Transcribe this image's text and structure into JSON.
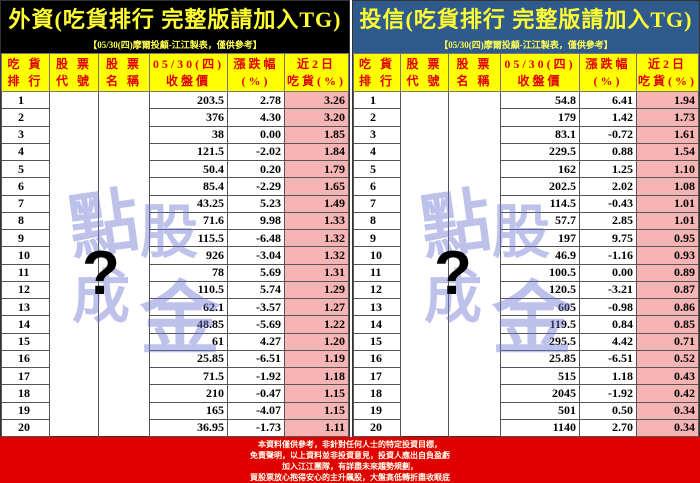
{
  "left": {
    "title": "外資(吃貨排行  完整版請加入TG)",
    "subtitle": "【05/30(四)摩爾投顧-江江製表，僅供參考】",
    "rows": [
      [
        "1",
        "203.5",
        "2.78",
        "3.26"
      ],
      [
        "2",
        "376",
        "4.30",
        "3.20"
      ],
      [
        "3",
        "38",
        "0.00",
        "1.85"
      ],
      [
        "4",
        "121.5",
        "-2.02",
        "1.84"
      ],
      [
        "5",
        "50.4",
        "0.20",
        "1.79"
      ],
      [
        "6",
        "85.4",
        "-2.29",
        "1.65"
      ],
      [
        "7",
        "43.25",
        "5.23",
        "1.49"
      ],
      [
        "8",
        "71.6",
        "9.98",
        "1.33"
      ],
      [
        "9",
        "115.5",
        "-6.48",
        "1.32"
      ],
      [
        "10",
        "926",
        "-3.04",
        "1.32"
      ],
      [
        "11",
        "78",
        "5.69",
        "1.31"
      ],
      [
        "12",
        "110.5",
        "5.74",
        "1.29"
      ],
      [
        "13",
        "62.1",
        "-3.57",
        "1.27"
      ],
      [
        "14",
        "48.85",
        "-5.69",
        "1.22"
      ],
      [
        "15",
        "61",
        "4.27",
        "1.20"
      ],
      [
        "16",
        "25.85",
        "-6.51",
        "1.19"
      ],
      [
        "17",
        "71.5",
        "-1.92",
        "1.18"
      ],
      [
        "18",
        "210",
        "-0.47",
        "1.15"
      ],
      [
        "19",
        "165",
        "-4.07",
        "1.15"
      ],
      [
        "20",
        "36.95",
        "-1.73",
        "1.11"
      ]
    ]
  },
  "right": {
    "title": "投信(吃貨排行  完整版請加入TG)",
    "subtitle": "【05/30(四)摩爾投顧-江江製表，僅供參考】",
    "rows": [
      [
        "1",
        "54.8",
        "6.41",
        "1.94"
      ],
      [
        "2",
        "179",
        "1.42",
        "1.73"
      ],
      [
        "3",
        "83.1",
        "-0.72",
        "1.61"
      ],
      [
        "4",
        "229.5",
        "0.88",
        "1.54"
      ],
      [
        "5",
        "162",
        "1.25",
        "1.10"
      ],
      [
        "6",
        "202.5",
        "2.02",
        "1.08"
      ],
      [
        "7",
        "114.5",
        "-0.43",
        "1.01"
      ],
      [
        "8",
        "57.7",
        "2.85",
        "1.01"
      ],
      [
        "9",
        "197",
        "9.75",
        "0.95"
      ],
      [
        "10",
        "46.9",
        "-1.16",
        "0.93"
      ],
      [
        "11",
        "100.5",
        "0.00",
        "0.89"
      ],
      [
        "12",
        "120.5",
        "-3.21",
        "0.87"
      ],
      [
        "13",
        "605",
        "-0.98",
        "0.86"
      ],
      [
        "14",
        "119.5",
        "0.84",
        "0.85"
      ],
      [
        "15",
        "295.5",
        "4.42",
        "0.71"
      ],
      [
        "16",
        "25.85",
        "-6.51",
        "0.52"
      ],
      [
        "17",
        "515",
        "1.18",
        "0.43"
      ],
      [
        "18",
        "2045",
        "-1.92",
        "0.42"
      ],
      [
        "19",
        "501",
        "0.50",
        "0.34"
      ],
      [
        "20",
        "1140",
        "2.70",
        "0.34"
      ]
    ]
  },
  "headers": [
    [
      "吃 貨",
      "排 行"
    ],
    [
      "股 票",
      "代 號"
    ],
    [
      "股 票",
      "名 稱"
    ],
    [
      "05/30(四)",
      "收盤價"
    ],
    [
      "漲跌幅",
      "(%)"
    ],
    [
      "近2日",
      "吃貨(%)"
    ]
  ],
  "watermark": {
    "chars": [
      "點",
      "股",
      "成",
      "金"
    ],
    "mark": "?"
  },
  "footer": [
    "本資料僅供參考，非針對任何人士的特定投資目標，",
    "免責聲明，以上資料並非投資意見，投資人應出自負盈虧",
    "加入江江團隊，有詳盡未來趨勢規劃，",
    "買股票放心抱得安心的主升飆股，大盤高低轉折盡收眼底"
  ],
  "colors": {
    "header_bg": "#ffff00",
    "header_text": "#e00000",
    "buy_bg": "#f7b4b4",
    "footer_bg": "#e00000",
    "left_title_bg": "#000000",
    "right_title_bg": "#2f5a8c"
  }
}
